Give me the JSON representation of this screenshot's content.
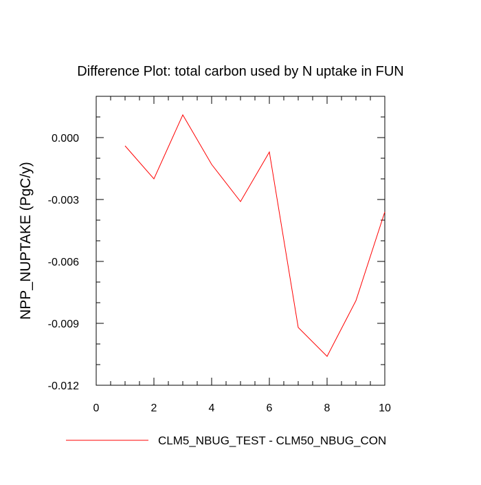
{
  "chart_data": {
    "type": "line",
    "title": "Difference Plot: total carbon used by N uptake in FUN",
    "xlabel": "",
    "ylabel": "NPP_NUPTAKE  (PgC/y)",
    "xlim": [
      0,
      10
    ],
    "ylim": [
      -0.012,
      0.002
    ],
    "xticks": [
      0,
      2,
      4,
      6,
      8,
      10
    ],
    "xtick_labels": [
      "0",
      "2",
      "4",
      "6",
      "8",
      "10"
    ],
    "yticks": [
      -0.012,
      -0.009,
      -0.006,
      -0.003,
      0.0
    ],
    "ytick_labels": [
      "-0.012",
      "-0.009",
      "-0.006",
      "-0.003",
      "0.000"
    ],
    "grid": false,
    "legend_position": "bottom",
    "series": [
      {
        "name": "CLM5_NBUG_TEST - CLM50_NBUG_CON",
        "color": "#ff0000",
        "x": [
          1,
          2,
          3,
          4,
          5,
          6,
          7,
          8,
          9,
          10
        ],
        "y": [
          -0.0004,
          -0.002,
          0.0011,
          -0.0013,
          -0.0031,
          -0.0007,
          -0.0092,
          -0.0106,
          -0.0079,
          -0.0036
        ]
      }
    ]
  }
}
